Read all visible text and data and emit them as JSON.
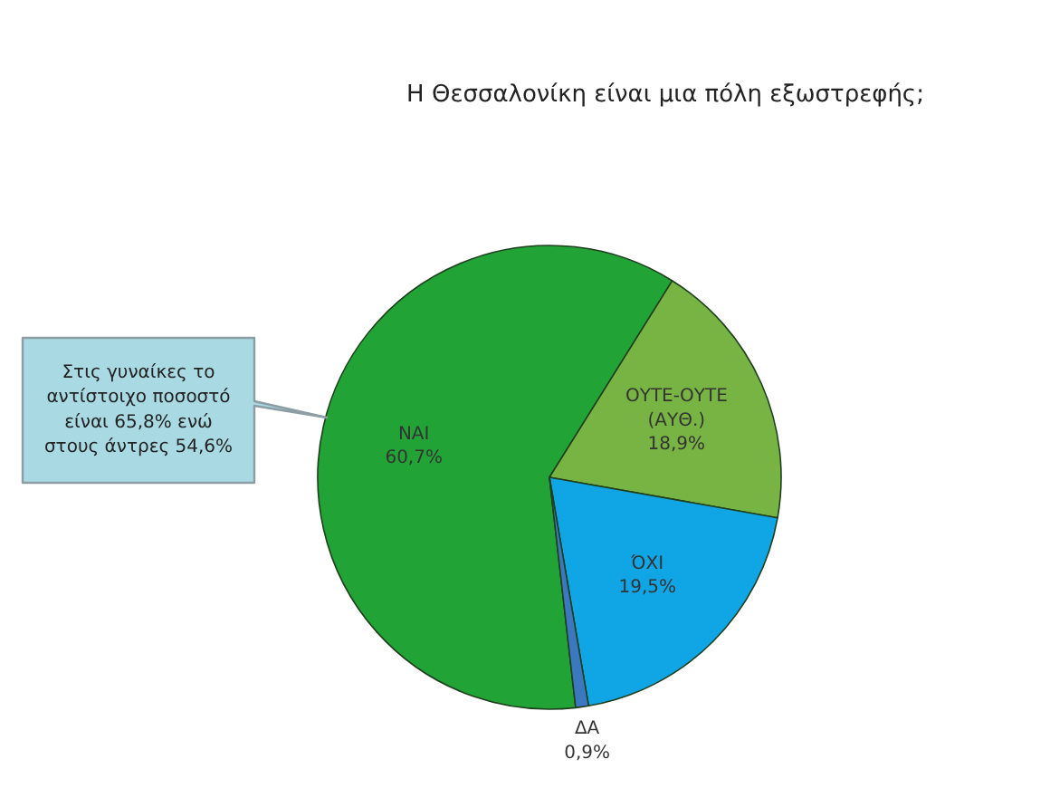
{
  "chart_data": {
    "type": "pie",
    "title": "Η Θεσσαλονίκη είναι μια πόλη εξωστρεφής;",
    "categories": [
      "ΝΑΙ",
      "ΟΥΤΕ-ΟΥΤΕ (ΑΥΘ.)",
      "ΌΧΙ",
      "ΔΑ"
    ],
    "values": [
      60.7,
      18.9,
      19.5,
      0.9
    ],
    "value_labels": [
      "60,7%",
      "18,9%",
      "19,5%",
      "0,9%"
    ],
    "colors": [
      "#22a336",
      "#78b443",
      "#10a6e6",
      "#3b78c0"
    ],
    "annotations": [
      "Στις γυναίκες το αντίστοιχο ποσοστό είναι 65,8% ενώ στους άντρες 54,6%"
    ]
  }
}
